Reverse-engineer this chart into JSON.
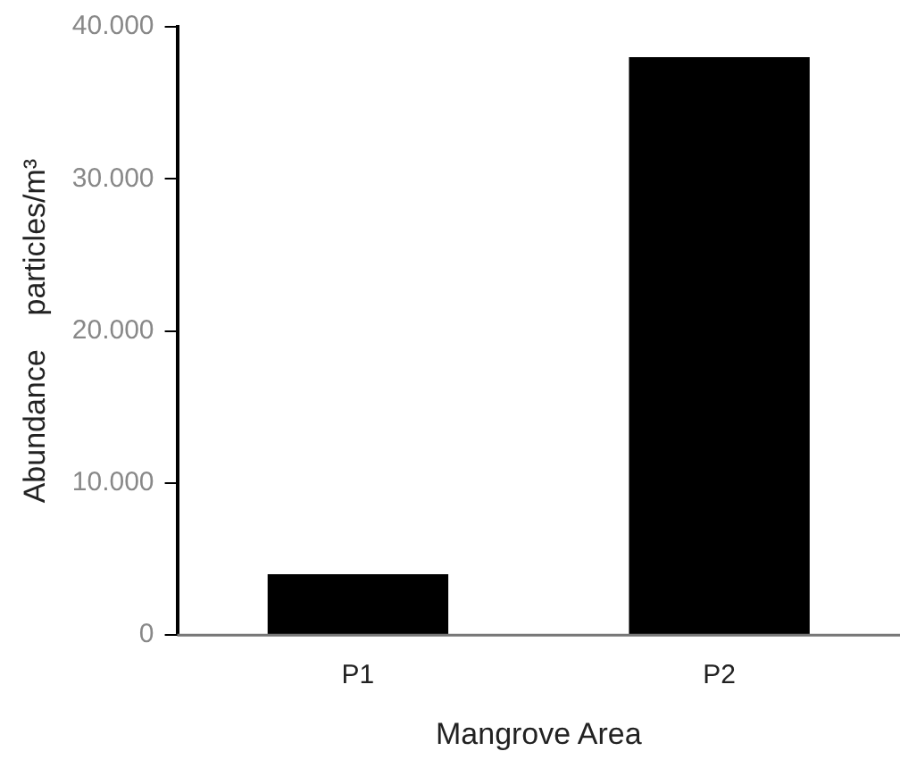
{
  "chart_data": {
    "type": "bar",
    "xlabel": "Mangrove Area",
    "ylabel": "Abundance    particles/m³",
    "categories": [
      "P1",
      "P2"
    ],
    "values": [
      4000,
      38000
    ],
    "color": "#000000",
    "ylim": [
      0,
      40000
    ],
    "yticks": [
      {
        "value": 0,
        "label": "0"
      },
      {
        "value": 10000,
        "label": "10.000"
      },
      {
        "value": 20000,
        "label": "20.000"
      },
      {
        "value": 30000,
        "label": "30.000"
      },
      {
        "value": 40000,
        "label": "40.000"
      }
    ],
    "grid": false,
    "legend": false
  }
}
